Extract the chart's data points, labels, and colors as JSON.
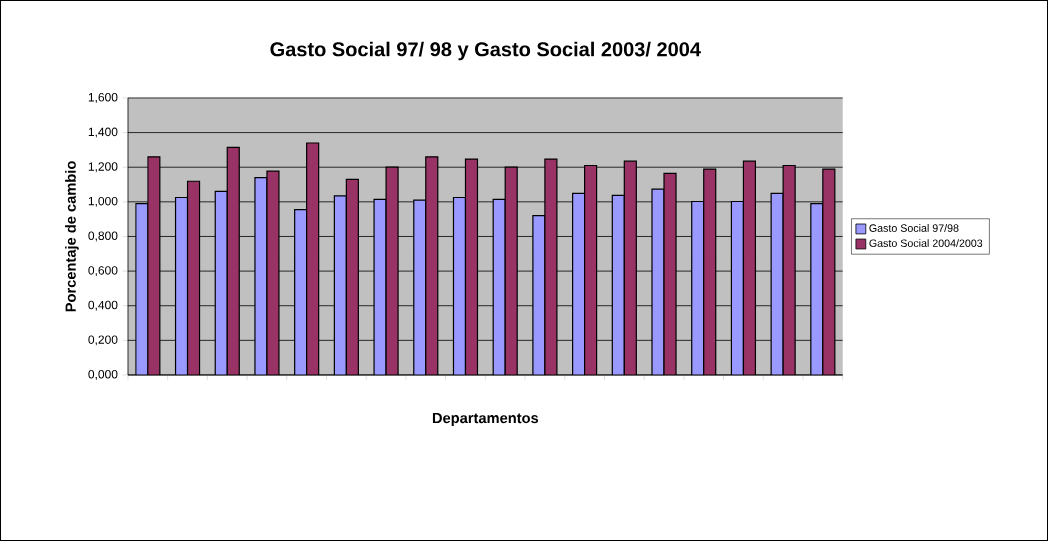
{
  "chart_data": {
    "type": "bar",
    "title": "Gasto Social 97/ 98 y Gasto Social 2003/ 2004",
    "xlabel": "Departamentos",
    "ylabel": "Porcentaje de cambio",
    "categories": [
      null,
      null,
      null,
      null,
      null,
      null,
      null,
      null,
      null,
      null,
      null,
      null,
      null,
      null,
      null,
      null,
      null,
      null
    ],
    "series": [
      {
        "name": "Gasto Social 97/98",
        "color": "#9999ff",
        "values": [
          0.99,
          1.025,
          1.06,
          1.14,
          0.955,
          1.035,
          1.014,
          1.01,
          1.025,
          1.014,
          0.92,
          1.049,
          1.037,
          1.074,
          1.002,
          1.002,
          1.049,
          0.99
        ]
      },
      {
        "name": "Gasto Social 2004/2003",
        "color": "#993366",
        "values": [
          1.26,
          1.119,
          1.315,
          1.177,
          1.34,
          1.13,
          1.2,
          1.26,
          1.247,
          1.2,
          1.247,
          1.21,
          1.235,
          1.165,
          1.189,
          1.235,
          1.21,
          1.189
        ]
      }
    ],
    "ylim": [
      0,
      1.6
    ],
    "yticks": [
      {
        "value": 0,
        "label": "0,000"
      },
      {
        "value": 0.2,
        "label": "0,200"
      },
      {
        "value": 0.4,
        "label": "0,400"
      },
      {
        "value": 0.6,
        "label": "0,600"
      },
      {
        "value": 0.8,
        "label": "0,800"
      },
      {
        "value": 1.0,
        "label": "1,000"
      },
      {
        "value": 1.2,
        "label": "1,200"
      },
      {
        "value": 1.4,
        "label": "1,400"
      },
      {
        "value": 1.6,
        "label": "1,600"
      }
    ],
    "grid": "y",
    "legend": "right"
  }
}
